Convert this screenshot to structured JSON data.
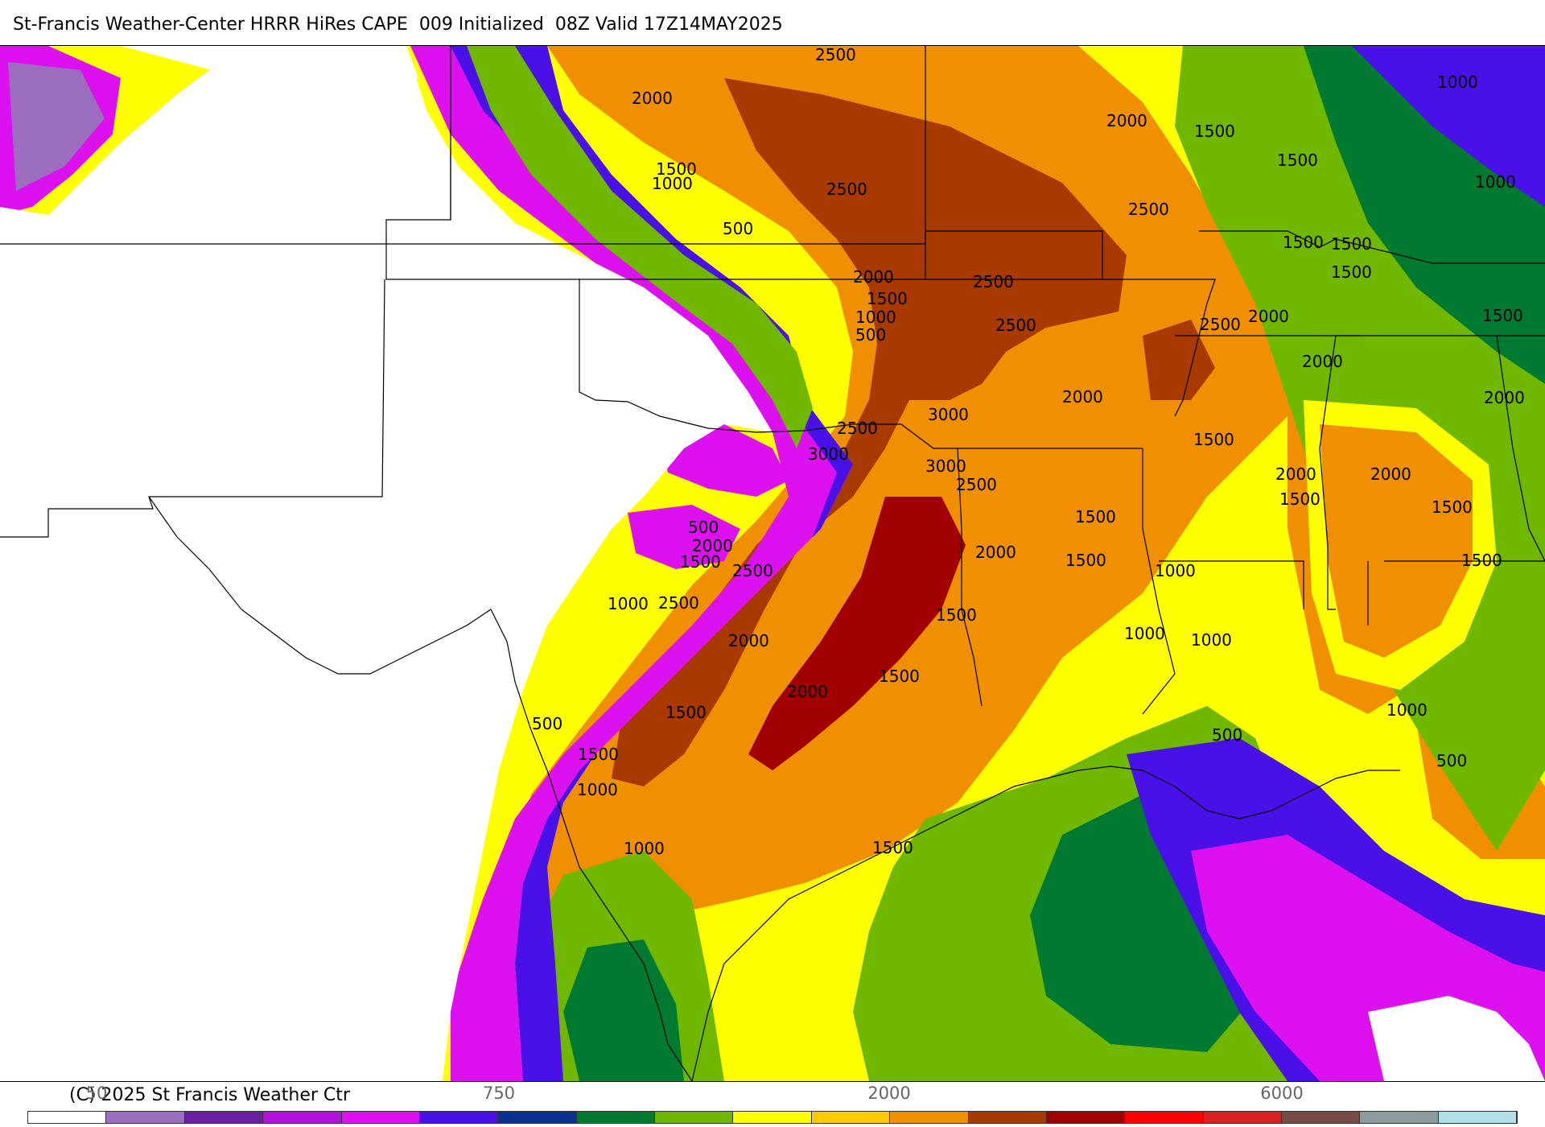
{
  "title": "St-Francis Weather-Center HRRR HiRes CAPE  009 Initialized  08Z Valid 17Z14MAY2025",
  "copyright": "(C) 2025 St Francis Weather Ctr",
  "colorbar": {
    "colors": [
      "#ffffff",
      "#9c6ec0",
      "#6a1fa0",
      "#b010d8",
      "#dd10f0",
      "#4a10e8",
      "#0a3090",
      "#007a30",
      "#70b800",
      "#ffff00",
      "#ffc800",
      "#f09000",
      "#a83a00",
      "#a00000",
      "#ff0000",
      "#d82020",
      "#7a4a44",
      "#8c9c9c",
      "#b0e0e8"
    ],
    "tick_labels": [
      "50",
      "750",
      "2000",
      "6000"
    ]
  },
  "contour_labels": [
    {
      "text": "500"
    },
    {
      "text": "2000"
    },
    {
      "text": "2500"
    },
    {
      "text": "1500"
    },
    {
      "text": "1000"
    },
    {
      "text": "2500"
    },
    {
      "text": "500"
    },
    {
      "text": "2000"
    },
    {
      "text": "1500"
    },
    {
      "text": "1000"
    },
    {
      "text": "500"
    },
    {
      "text": "2500"
    },
    {
      "text": "2500"
    },
    {
      "text": "2000"
    },
    {
      "text": "1500"
    },
    {
      "text": "1500"
    },
    {
      "text": "1000"
    },
    {
      "text": "1500"
    },
    {
      "text": "1000"
    },
    {
      "text": "2500"
    },
    {
      "text": "1500"
    },
    {
      "text": "1500"
    },
    {
      "text": "2000"
    },
    {
      "text": "2500"
    },
    {
      "text": "1500"
    },
    {
      "text": "2000"
    },
    {
      "text": "2000"
    },
    {
      "text": "3000"
    },
    {
      "text": "2500"
    },
    {
      "text": "3000"
    },
    {
      "text": "3000"
    },
    {
      "text": "2500"
    },
    {
      "text": "1500"
    },
    {
      "text": "2000"
    },
    {
      "text": "1500"
    },
    {
      "text": "1500"
    },
    {
      "text": "500"
    },
    {
      "text": "2000"
    },
    {
      "text": "1500"
    },
    {
      "text": "2500"
    },
    {
      "text": "2000"
    },
    {
      "text": "1500"
    },
    {
      "text": "1000"
    },
    {
      "text": "2500"
    },
    {
      "text": "1500"
    },
    {
      "text": "1500"
    },
    {
      "text": "2000"
    },
    {
      "text": "2000"
    },
    {
      "text": "1000"
    },
    {
      "text": "1000"
    },
    {
      "text": "1000"
    },
    {
      "text": "1500"
    },
    {
      "text": "2000"
    },
    {
      "text": "2000"
    },
    {
      "text": "1500"
    },
    {
      "text": "1000"
    },
    {
      "text": "500"
    },
    {
      "text": "1500"
    },
    {
      "text": "500"
    },
    {
      "text": "500"
    },
    {
      "text": "1000"
    },
    {
      "text": "1500"
    },
    {
      "text": "1000"
    },
    {
      "text": "1500"
    }
  ]
}
